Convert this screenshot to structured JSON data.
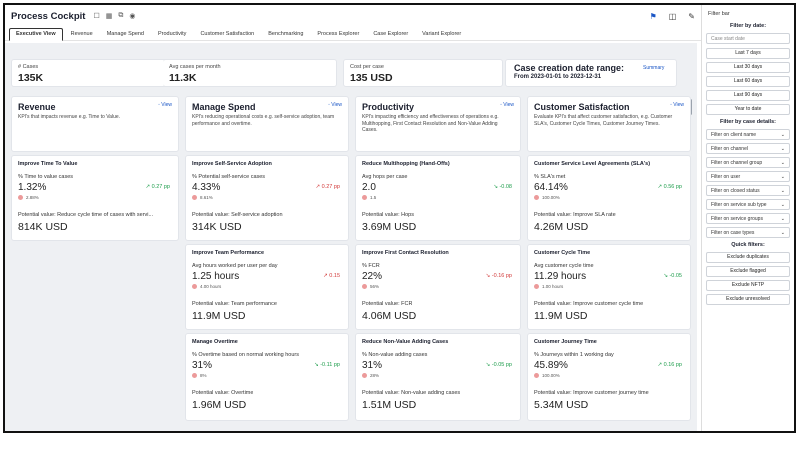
{
  "header": {
    "title": "Process Cockpit",
    "icons": [
      "bookmark-icon",
      "grid-icon",
      "copy-icon",
      "pin-icon",
      "comment-flag-icon",
      "panel-icon",
      "edit-icon"
    ]
  },
  "tabs": [
    {
      "label": "Executive View",
      "active": true
    },
    {
      "label": "Revenue"
    },
    {
      "label": "Manage Spend"
    },
    {
      "label": "Productivity"
    },
    {
      "label": "Customer Satisfaction"
    },
    {
      "label": "Benchmarking"
    },
    {
      "label": "Process Explorer"
    },
    {
      "label": "Case Explorer"
    },
    {
      "label": "Variant Explorer"
    }
  ],
  "kpis": [
    {
      "label": "# Cases",
      "value": "135K"
    },
    {
      "label": "Avg cases per month",
      "value": "11.3K"
    },
    {
      "label": "Cost per case",
      "value": "135 USD"
    }
  ],
  "date_range": {
    "title": "Case creation date range:",
    "text": "From   2023-01-01 to 2023-12-31",
    "summary_link": "Summary"
  },
  "categories": [
    {
      "title": "Revenue",
      "view": "View",
      "desc": "KPI's that impacts revenue e.g. Time to Value."
    },
    {
      "title": "Manage Spend",
      "view": "View",
      "desc": "KPI's reducing operational costs e.g. self-service adoption, team performance and overtime."
    },
    {
      "title": "Productivity",
      "view": "View",
      "desc": "KPI's impacting efficiency and effectiveness of operations e.g. Multihopping, First Contact Resolution and Non-Value Adding Cases."
    },
    {
      "title": "Customer Satisfaction",
      "view": "View",
      "desc": "Evaluate KPI's that affect customer satisfaction, e.g. Customer SLA's, Customer Cycle Times, Customer Journey Times."
    }
  ],
  "metrics": [
    {
      "title": "Improve Time To Value",
      "label": "% Time to value cases",
      "value": "1.32%",
      "trend": "↗ 0.27 pp",
      "dir": "up",
      "sub": "2.88%",
      "pot": "Potential value: Reduce cycle time of cases with servi...",
      "pot_value": "814K USD"
    },
    {
      "title": "Improve Self-Service Adoption",
      "label": "% Potential self-service cases",
      "value": "4.33%",
      "trend": "↗ 0.27 pp",
      "dir": "down",
      "sub": "8.61%",
      "pot": "Potential value: Self-service adoption",
      "pot_value": "314K USD"
    },
    {
      "title": "Reduce Multihopping (Hand-Offs)",
      "label": "Avg hops per case",
      "value": "2.0",
      "trend": "↘ -0.08",
      "dir": "up",
      "sub": "1.5",
      "pot": "Potential value: Hops",
      "pot_value": "3.69M USD"
    },
    {
      "title": "Customer Service Level Agreements (SLA's)",
      "label": "% SLA's met",
      "value": "64.14%",
      "trend": "↗ 0.56 pp",
      "dir": "up",
      "sub": "100.00%",
      "pot": "Potential value: Improve SLA rate",
      "pot_value": "4.26M USD"
    },
    {
      "title": "Improve Team Performance",
      "label": "Avg hours worked per user per day",
      "value": "1.25 hours",
      "trend": "↗ 0.15",
      "dir": "down",
      "sub": "4.00 hours",
      "pot": "Potential value: Team performance",
      "pot_value": "11.9M USD"
    },
    {
      "title": "Improve First Contact Resolution",
      "label": "% FCR",
      "value": "22%",
      "trend": "↘ -0.16 pp",
      "dir": "down",
      "sub": "56%",
      "pot": "Potential value: FCR",
      "pot_value": "4.06M USD"
    },
    {
      "title": "Customer Cycle Time",
      "label": "Avg customer cycle time",
      "value": "11.29 hours",
      "trend": "↘ -0.05",
      "dir": "up",
      "sub": "1.00 hours",
      "pot": "Potential value: Improve customer cycle time",
      "pot_value": "11.9M USD"
    },
    {
      "title": "Manage Overtime",
      "label": "% Overtime based on normal working hours",
      "value": "31%",
      "trend": "↘ -0.11 pp",
      "dir": "up",
      "sub": "8%",
      "pot": "Potential value: Overtime",
      "pot_value": "1.96M USD"
    },
    {
      "title": "Reduce Non-Value Adding Cases",
      "label": "% Non-value adding cases",
      "value": "31%",
      "trend": "↘ -0.05 pp",
      "dir": "up",
      "sub": "28%",
      "pot": "Potential value: Non-value adding cases",
      "pot_value": "1.51M USD"
    },
    {
      "title": "Customer Journey Time",
      "label": "% Journeys within 1 working day",
      "value": "45.89%",
      "trend": "↗ 0.16 pp",
      "dir": "up",
      "sub": "100.00%",
      "pot": "Potential value: Improve customer journey time",
      "pot_value": "5.34M USD"
    }
  ],
  "filter_bar": {
    "title": "Filter bar",
    "date_heading": "Filter by date:",
    "date_placeholder": "Case start date",
    "date_buttons": [
      "Last 7 days",
      "Last 30 days",
      "Last 60 days",
      "Last 90 days",
      "Year to date"
    ],
    "details_heading": "Filter by case details:",
    "selects": [
      "Filter on client name",
      "Filter on channel",
      "Filter on channel group",
      "Filter on user",
      "Filter on closed status",
      "Filter on service sub type",
      "Filter on service groups",
      "Filter on case types"
    ],
    "quick_heading": "Quick filters:",
    "quick_buttons": [
      "Exclude duplicates",
      "Exclude flagged",
      "Exclude NFTP",
      "Exclude unresolved"
    ]
  },
  "colors": {
    "accent": "#1a56c6",
    "trend_up": "#1e9d4c",
    "trend_down": "#d23a3a",
    "canvas_bg": "#eef0f3"
  }
}
